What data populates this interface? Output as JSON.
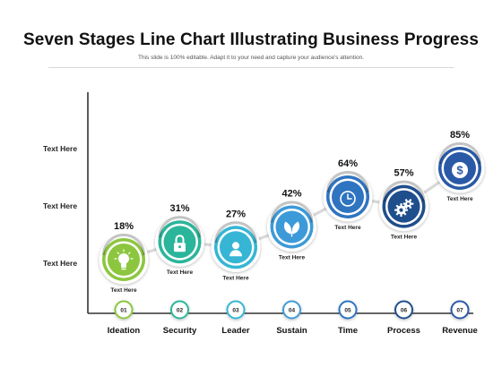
{
  "title": "Seven Stages Line Chart Illustrating Business Progress",
  "subtitle": "This slide is 100% editable. Adapt it to your need and capture your audience's attention.",
  "colors": {
    "green": "#8cc63f",
    "teal": "#2bb59a",
    "cyan": "#36b6d4",
    "lightblue": "#3d9ad8",
    "blue": "#2f74c0",
    "darkblue": "#1f4e8c",
    "navy": "#2a5aa6",
    "line": "#d9d9d9",
    "axis": "#333333"
  },
  "chart_data": {
    "type": "line",
    "title": "Seven Stages Line Chart Illustrating Business Progress",
    "y_tick_labels": [
      "Text Here",
      "Text Here",
      "Text Here"
    ],
    "categories": [
      "Ideation",
      "Security",
      "Leader",
      "Sustain",
      "Time",
      "Process",
      "Revenue"
    ],
    "stage_numbers": [
      "01",
      "02",
      "03",
      "04",
      "05",
      "06",
      "07"
    ],
    "values": [
      18,
      31,
      27,
      42,
      64,
      57,
      85
    ],
    "value_labels": [
      "18%",
      "31%",
      "27%",
      "42%",
      "64%",
      "57%",
      "85%"
    ],
    "point_captions": [
      "Text Here",
      "Text Here",
      "Text Here",
      "Text Here",
      "Text Here",
      "Text Here",
      "Text Here"
    ],
    "icons": [
      "lightbulb-icon",
      "padlock-icon",
      "user-icon",
      "leaf-icon",
      "clock-icon",
      "gears-icon",
      "dollar-icon"
    ],
    "point_colors": [
      "green",
      "teal",
      "cyan",
      "lightblue",
      "blue",
      "darkblue",
      "navy"
    ],
    "grid": false,
    "legend": "none"
  }
}
